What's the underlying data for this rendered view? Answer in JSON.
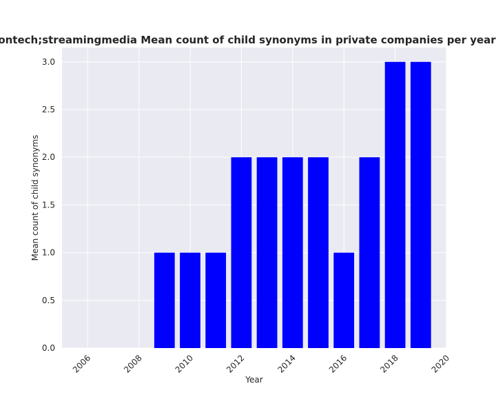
{
  "chart_data": {
    "type": "bar",
    "title": "Quantity of companies that are related to business;informationtech;streamingmedia Mean count of child synonyms in private companies per year",
    "xlabel": "Year",
    "ylabel": "Mean count of child synonyms",
    "x": [
      2009,
      2010,
      2011,
      2012,
      2013,
      2014,
      2015,
      2016,
      2017,
      2018,
      2019
    ],
    "values": [
      1,
      1,
      1,
      2,
      2,
      2,
      2,
      1,
      2,
      3,
      3
    ],
    "xlim": [
      2005,
      2020
    ],
    "ylim": [
      0,
      3.15
    ],
    "xticks": [
      "2006",
      "2008",
      "2010",
      "2012",
      "2014",
      "2016",
      "2018",
      "2020"
    ],
    "yticks": [
      "0.0",
      "0.5",
      "1.0",
      "1.5",
      "2.0",
      "2.5",
      "3.0"
    ],
    "grid": true,
    "colors": {
      "bar": "#0000ff",
      "background": "#eaeaf2",
      "grid": "#ffffff"
    }
  }
}
